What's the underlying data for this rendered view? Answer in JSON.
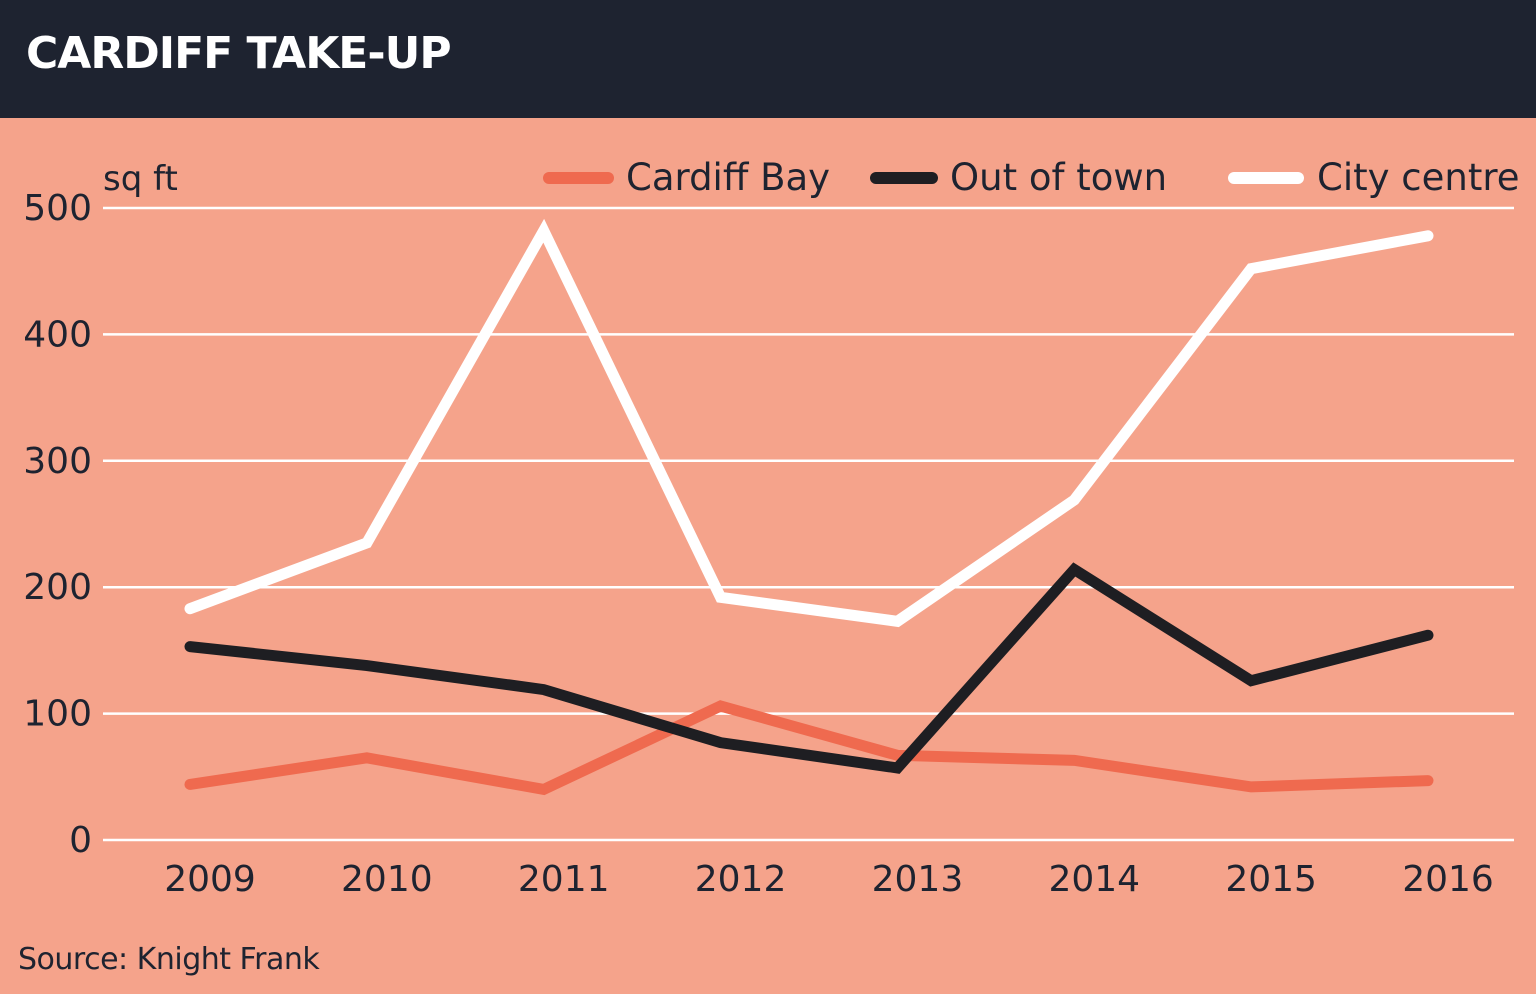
{
  "header": {
    "title": "CARDIFF TAKE-UP"
  },
  "footer": {
    "source": "Source: Knight Frank"
  },
  "colors": {
    "background": "#f5a38b",
    "header": "#1e2330",
    "gridline": "#ffffff",
    "text": "#1e2330",
    "cardiff_bay": "#ef6a4f",
    "out_of_town": "#1e1e22",
    "city_centre": "#ffffff"
  },
  "chart_data": {
    "type": "line",
    "title": "CARDIFF TAKE-UP",
    "ylabel": "sq ft",
    "ylim": [
      0,
      500
    ],
    "yticks": [
      0,
      100,
      200,
      300,
      400,
      500
    ],
    "categories": [
      "2009",
      "2010",
      "2011",
      "2012",
      "2013",
      "2014",
      "2015",
      "2016"
    ],
    "grid": true,
    "legend_position": "top",
    "series": [
      {
        "name": "Cardiff Bay",
        "color": "#ef6a4f",
        "values": [
          44,
          65,
          40,
          106,
          67,
          63,
          42,
          47
        ]
      },
      {
        "name": "Out of town",
        "color": "#1e1e22",
        "values": [
          153,
          138,
          119,
          77,
          57,
          214,
          126,
          162
        ]
      },
      {
        "name": "City centre",
        "color": "#ffffff",
        "values": [
          183,
          235,
          482,
          192,
          173,
          269,
          452,
          478
        ]
      }
    ]
  }
}
